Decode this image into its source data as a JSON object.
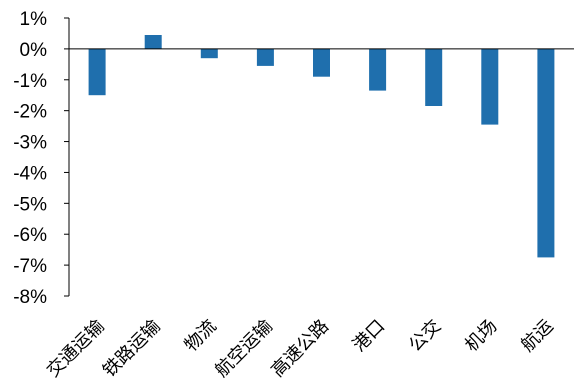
{
  "chart_data": {
    "type": "bar",
    "categories": [
      "交通运输",
      "铁路运输",
      "物流",
      "航空运输",
      "高速公路",
      "港口",
      "公交",
      "机场",
      "航运"
    ],
    "values": [
      -1.5,
      0.45,
      -0.3,
      -0.55,
      -0.9,
      -1.35,
      -1.85,
      -2.45,
      -6.75
    ],
    "ylim": [
      -8,
      1
    ],
    "yticks": [
      1,
      0,
      -1,
      -2,
      -3,
      -4,
      -5,
      -6,
      -7,
      -8
    ],
    "ytick_labels": [
      "1%",
      "0%",
      "-1%",
      "-2%",
      "-3%",
      "-4%",
      "-5%",
      "-6%",
      "-7%",
      "-8%"
    ],
    "bar_color": "#1f6fad",
    "grid": false,
    "legend": "none"
  }
}
